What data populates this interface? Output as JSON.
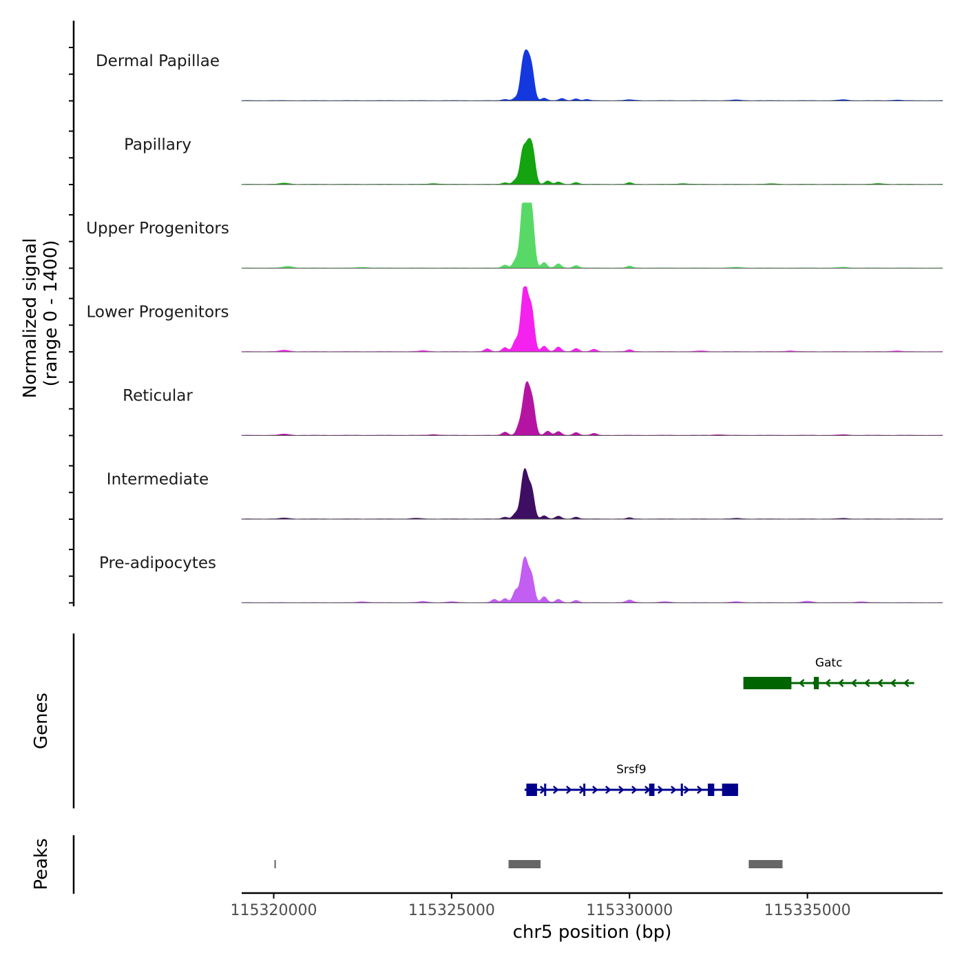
{
  "chart_data": {
    "type": "area",
    "title": "",
    "ylabel_line1": "Normalized signal",
    "ylabel_line2": "(range 0 - 1400)",
    "xlabel": "chr5 position (bp)",
    "xlim": [
      115319100,
      115338800
    ],
    "ylim": [
      0,
      1400
    ],
    "x_ticks": [
      115320000,
      115325000,
      115330000,
      115335000
    ],
    "x_tick_labels": [
      "115320000",
      "115325000",
      "115330000",
      "115335000"
    ],
    "tracks": [
      {
        "name": "Dermal Papillae",
        "color": "#1438de",
        "peaks": [
          [
            115326500,
            28
          ],
          [
            115326800,
            60
          ],
          [
            115327000,
            680
          ],
          [
            115327120,
            720
          ],
          [
            115327250,
            630
          ],
          [
            115327600,
            55
          ],
          [
            115328100,
            45
          ],
          [
            115328500,
            40
          ],
          [
            115328800,
            25
          ]
        ],
        "background": [
          [
            115330000,
            18
          ],
          [
            115333000,
            15
          ],
          [
            115336000,
            20
          ],
          [
            115337500,
            12
          ]
        ]
      },
      {
        "name": "Papillary",
        "color": "#13a40f",
        "peaks": [
          [
            115326500,
            35
          ],
          [
            115326800,
            95
          ],
          [
            115327000,
            680
          ],
          [
            115327150,
            700
          ],
          [
            115327280,
            660
          ],
          [
            115327700,
            75
          ],
          [
            115328000,
            50
          ],
          [
            115328500,
            40
          ],
          [
            115330000,
            35
          ]
        ],
        "background": [
          [
            115320300,
            25
          ],
          [
            115324500,
            15
          ],
          [
            115331500,
            15
          ],
          [
            115334000,
            12
          ],
          [
            115337000,
            15
          ]
        ]
      },
      {
        "name": "Upper Progenitors",
        "color": "#58d967",
        "peaks": [
          [
            115326500,
            65
          ],
          [
            115326800,
            170
          ],
          [
            115327000,
            1150
          ],
          [
            115327120,
            1250
          ],
          [
            115327250,
            1100
          ],
          [
            115327600,
            120
          ],
          [
            115328000,
            90
          ],
          [
            115328500,
            55
          ],
          [
            115330000,
            40
          ]
        ],
        "background": [
          [
            115320400,
            35
          ],
          [
            115322500,
            15
          ],
          [
            115333000,
            15
          ],
          [
            115336000,
            15
          ]
        ]
      },
      {
        "name": "Lower Progenitors",
        "color": "#f521ee",
        "peaks": [
          [
            115326000,
            60
          ],
          [
            115326500,
            90
          ],
          [
            115326800,
            240
          ],
          [
            115327000,
            880
          ],
          [
            115327100,
            900
          ],
          [
            115327250,
            860
          ],
          [
            115327600,
            120
          ],
          [
            115328000,
            100
          ],
          [
            115328500,
            70
          ],
          [
            115329000,
            50
          ],
          [
            115330000,
            40
          ]
        ],
        "background": [
          [
            115320300,
            30
          ],
          [
            115324200,
            20
          ],
          [
            115332000,
            15
          ],
          [
            115334500,
            15
          ],
          [
            115337500,
            15
          ]
        ]
      },
      {
        "name": "Reticular",
        "color": "#b514a3",
        "peaks": [
          [
            115326500,
            70
          ],
          [
            115326900,
            200
          ],
          [
            115327050,
            650
          ],
          [
            115327150,
            690
          ],
          [
            115327280,
            620
          ],
          [
            115327700,
            90
          ],
          [
            115328000,
            80
          ],
          [
            115328500,
            60
          ],
          [
            115329000,
            40
          ]
        ],
        "background": [
          [
            115320300,
            25
          ],
          [
            115324500,
            15
          ],
          [
            115332500,
            12
          ],
          [
            115336000,
            12
          ]
        ]
      },
      {
        "name": "Intermediate",
        "color": "#3e0e62",
        "peaks": [
          [
            115326500,
            40
          ],
          [
            115326800,
            120
          ],
          [
            115327000,
            640
          ],
          [
            115327100,
            660
          ],
          [
            115327250,
            600
          ],
          [
            115327600,
            70
          ],
          [
            115328000,
            60
          ],
          [
            115328500,
            40
          ],
          [
            115330000,
            25
          ]
        ],
        "background": [
          [
            115320300,
            20
          ],
          [
            115324000,
            15
          ],
          [
            115333000,
            12
          ],
          [
            115336000,
            12
          ]
        ]
      },
      {
        "name": "Pre-adipocytes",
        "color": "#c25ef2",
        "peaks": [
          [
            115326200,
            70
          ],
          [
            115326500,
            90
          ],
          [
            115326800,
            260
          ],
          [
            115327000,
            580
          ],
          [
            115327100,
            600
          ],
          [
            115327250,
            540
          ],
          [
            115327600,
            130
          ],
          [
            115328000,
            70
          ],
          [
            115328500,
            50
          ],
          [
            115330000,
            30
          ]
        ],
        "background": [
          [
            115322500,
            20
          ],
          [
            115324200,
            25
          ],
          [
            115325000,
            20
          ],
          [
            115330000,
            25
          ],
          [
            115331000,
            20
          ],
          [
            115333000,
            20
          ],
          [
            115335000,
            30
          ],
          [
            115336500,
            20
          ]
        ]
      }
    ],
    "genes_label": "Genes",
    "genes": [
      {
        "name": "Gatc",
        "strand": "-",
        "color": "#006400",
        "start": 115333200,
        "end": 115338000,
        "exons": [
          [
            115333200,
            115334550
          ],
          [
            115335180,
            115335320
          ]
        ]
      },
      {
        "name": "Srsf9",
        "strand": "+",
        "color": "#00008b",
        "start": 115327050,
        "end": 115333050,
        "exons": [
          [
            115327100,
            115327400
          ],
          [
            115327600,
            115327620
          ],
          [
            115328700,
            115328730
          ],
          [
            115330550,
            115330700
          ],
          [
            115331440,
            115331500
          ],
          [
            115332200,
            115332380
          ],
          [
            115332600,
            115333050
          ]
        ]
      }
    ],
    "peaks_label": "Peaks",
    "peak_regions": [
      [
        115320020,
        115320060
      ],
      [
        115326600,
        115327500
      ],
      [
        115333350,
        115334300
      ]
    ]
  }
}
